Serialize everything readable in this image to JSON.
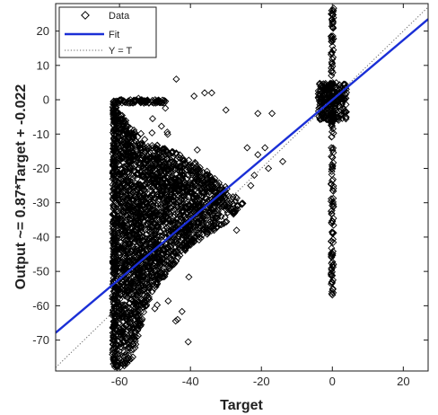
{
  "chart_data": {
    "type": "scatter",
    "title": "",
    "xlabel": "Target",
    "ylabel": "Output ~= 0.87*Target + -0.022",
    "xlim": [
      -78,
      27
    ],
    "ylim": [
      -79,
      28
    ],
    "xticks": [
      -60,
      -40,
      -20,
      0,
      20
    ],
    "yticks": [
      20,
      10,
      0,
      -10,
      -20,
      -30,
      -40,
      -50,
      -60,
      -70
    ],
    "grid": false,
    "legend_position": "top-left",
    "series": [
      {
        "name": "Data",
        "marker": "diamond",
        "color": "#000000",
        "groups": [
          {
            "kind": "saturated-band",
            "x": [
              -62,
              -47
            ],
            "y": [
              -1,
              0
            ]
          },
          {
            "kind": "column",
            "x": -61.5,
            "y": [
              -77,
              0
            ]
          },
          {
            "kind": "scattered-outliers",
            "x": [
              -55,
              -38
            ],
            "y": [
              -72,
              5
            ]
          },
          {
            "kind": "triangular-cloud",
            "polygon": [
              [
                -62,
                -78
              ],
              [
                -62,
                0
              ],
              [
                -57,
                -8
              ],
              [
                -52,
                -12
              ],
              [
                -45,
                -15
              ],
              [
                -38,
                -18
              ],
              [
                -33,
                -23
              ],
              [
                -28,
                -27
              ],
              [
                -25,
                -30
              ],
              [
                -30,
                -36
              ],
              [
                -36,
                -40
              ],
              [
                -42,
                -44
              ],
              [
                -46,
                -50
              ],
              [
                -50,
                -55
              ],
              [
                -53,
                -62
              ],
              [
                -55,
                -70
              ],
              [
                -57,
                -78
              ]
            ]
          },
          {
            "kind": "column",
            "x": 0,
            "y": [
              -57,
              27
            ]
          },
          {
            "kind": "dense-cluster",
            "x": [
              -4,
              4
            ],
            "y": [
              -6,
              5
            ]
          },
          {
            "kind": "stragglers",
            "points": [
              [
                -30,
                -3
              ],
              [
                -21,
                -4
              ],
              [
                -17,
                -4
              ],
              [
                -21,
                -16
              ],
              [
                -18,
                -20
              ],
              [
                -23,
                -25
              ],
              [
                -27,
                -38
              ],
              [
                -44,
                6
              ],
              [
                -36,
                2
              ],
              [
                -34,
                2
              ],
              [
                -14,
                -18
              ],
              [
                -19,
                -14
              ],
              [
                -24,
                -14
              ],
              [
                -22,
                -22
              ]
            ]
          }
        ]
      },
      {
        "name": "Fit",
        "type": "line",
        "color": "#1a2fd6",
        "slope": 0.87,
        "intercept": -0.022
      },
      {
        "name": "Y = T",
        "type": "line",
        "style": "dotted",
        "color": "#666666",
        "slope": 1,
        "intercept": 0
      }
    ]
  }
}
